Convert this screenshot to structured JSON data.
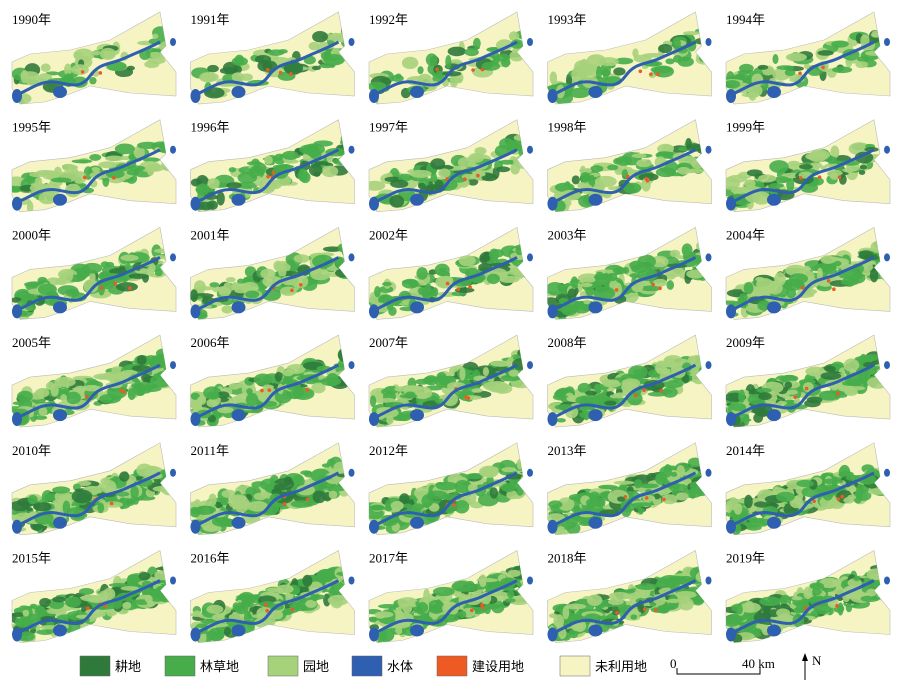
{
  "panels": [
    {
      "year": "1990年"
    },
    {
      "year": "1991年"
    },
    {
      "year": "1992年"
    },
    {
      "year": "1993年"
    },
    {
      "year": "1994年"
    },
    {
      "year": "1995年"
    },
    {
      "year": "1996年"
    },
    {
      "year": "1997年"
    },
    {
      "year": "1998年"
    },
    {
      "year": "1999年"
    },
    {
      "year": "2000年"
    },
    {
      "year": "2001年"
    },
    {
      "year": "2002年"
    },
    {
      "year": "2003年"
    },
    {
      "year": "2004年"
    },
    {
      "year": "2005年"
    },
    {
      "year": "2006年"
    },
    {
      "year": "2007年"
    },
    {
      "year": "2008年"
    },
    {
      "year": "2009年"
    },
    {
      "year": "2010年"
    },
    {
      "year": "2011年"
    },
    {
      "year": "2012年"
    },
    {
      "year": "2013年"
    },
    {
      "year": "2014年"
    },
    {
      "year": "2015年"
    },
    {
      "year": "2016年"
    },
    {
      "year": "2017年"
    },
    {
      "year": "2018年"
    },
    {
      "year": "2019年"
    }
  ],
  "legend": [
    {
      "label": "耕地",
      "color": "#2f7a3b"
    },
    {
      "label": "林草地",
      "color": "#46ad4a"
    },
    {
      "label": "园地",
      "color": "#a6d27c"
    },
    {
      "label": "水体",
      "color": "#2f5fb0"
    },
    {
      "label": "建设用地",
      "color": "#ee5a24"
    },
    {
      "label": "未利用地",
      "color": "#f7f4c4"
    }
  ],
  "scale_bar": {
    "start": "0",
    "end": "40 km"
  },
  "north": "N"
}
